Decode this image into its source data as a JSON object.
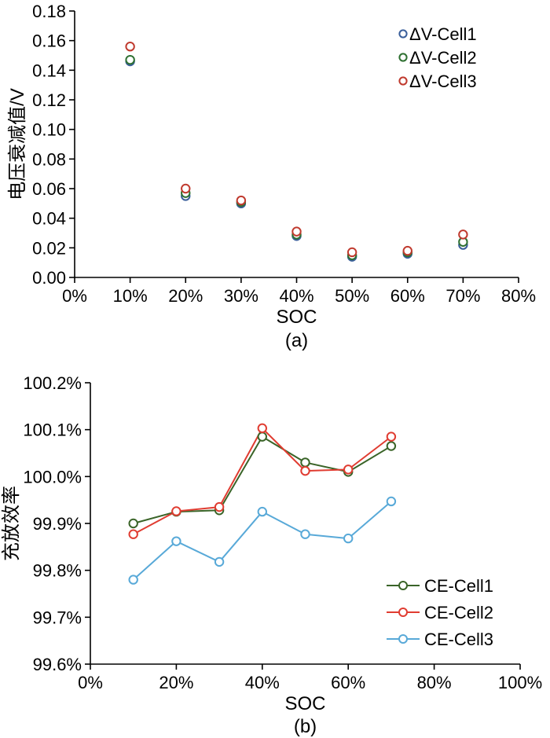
{
  "page": {
    "background": "#ffffff",
    "axis_color": "#000000"
  },
  "chart_data": [
    {
      "id": "a",
      "type": "scatter",
      "title": "",
      "caption": "(a)",
      "xlabel": "SOC",
      "ylabel": "电压衰减值/V",
      "x": [
        10,
        20,
        30,
        40,
        50,
        60,
        70
      ],
      "xlim": [
        0,
        80
      ],
      "xticks": [
        0,
        10,
        20,
        30,
        40,
        50,
        60,
        70,
        80
      ],
      "xtick_labels": [
        "0%",
        "10%",
        "20%",
        "30%",
        "40%",
        "50%",
        "60%",
        "70%",
        "80%"
      ],
      "ylim": [
        0,
        0.18
      ],
      "yticks": [
        0,
        0.02,
        0.04,
        0.06,
        0.08,
        0.1,
        0.12,
        0.14,
        0.16,
        0.18
      ],
      "ytick_labels": [
        "0.00",
        "0.02",
        "0.04",
        "0.06",
        "0.08",
        "0.10",
        "0.12",
        "0.14",
        "0.16",
        "0.18"
      ],
      "grid": false,
      "legend_position": "top-right",
      "series": [
        {
          "name": "ΔV-Cell1",
          "color": "#3a5f9b",
          "values": [
            0.146,
            0.055,
            0.05,
            0.028,
            0.014,
            0.016,
            0.022
          ]
        },
        {
          "name": "ΔV-Cell2",
          "color": "#2e7031",
          "values": [
            0.147,
            0.057,
            0.051,
            0.029,
            0.015,
            0.017,
            0.024
          ]
        },
        {
          "name": "ΔV-Cell3",
          "color": "#c03a2e",
          "values": [
            0.156,
            0.06,
            0.052,
            0.031,
            0.017,
            0.018,
            0.029
          ]
        }
      ]
    },
    {
      "id": "b",
      "type": "line",
      "title": "",
      "caption": "(b)",
      "xlabel": "SOC",
      "ylabel": "充放效率",
      "x": [
        10,
        20,
        30,
        40,
        50,
        60,
        70
      ],
      "xlim": [
        0,
        100
      ],
      "xticks": [
        0,
        20,
        40,
        60,
        80,
        100
      ],
      "xtick_labels": [
        "0%",
        "20%",
        "40%",
        "60%",
        "80%",
        "100%"
      ],
      "ylim": [
        99.6,
        100.2
      ],
      "yticks": [
        99.6,
        99.7,
        99.8,
        99.9,
        100.0,
        100.1,
        100.2
      ],
      "ytick_labels": [
        "99.6%",
        "99.7%",
        "99.8%",
        "99.9%",
        "100.0%",
        "100.1%",
        "100.2%"
      ],
      "grid": false,
      "legend_position": "bottom-right",
      "series": [
        {
          "name": "CE-Cell1",
          "color": "#3a6428",
          "values": [
            99.9,
            99.925,
            99.928,
            100.085,
            100.03,
            100.01,
            100.065
          ]
        },
        {
          "name": "CE-Cell2",
          "color": "#e03c31",
          "values": [
            99.877,
            99.926,
            99.935,
            100.103,
            100.012,
            100.015,
            100.085
          ]
        },
        {
          "name": "CE-Cell3",
          "color": "#58a9d8",
          "values": [
            99.78,
            99.862,
            99.818,
            99.925,
            99.877,
            99.868,
            99.947
          ]
        }
      ]
    }
  ]
}
